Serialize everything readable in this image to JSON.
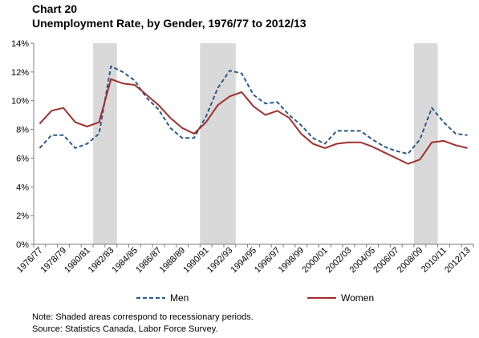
{
  "header": {
    "label": "Chart 20",
    "title": "Unemployment Rate, by Gender, 1976/77 to 2012/13"
  },
  "notes": {
    "note": "Note: Shaded areas correspond to recessionary periods.",
    "source": "Source: Statistics Canada, Labor Force Survey."
  },
  "colors": {
    "men": "#2e5a88",
    "women": "#a0302e",
    "recession": "#d9d9d9",
    "axis": "#7f7f7f"
  },
  "chart_data": {
    "type": "line",
    "title": "Unemployment Rate, by Gender, 1976/77 to 2012/13",
    "xlabel": "",
    "ylabel": "",
    "ylim": [
      0,
      14
    ],
    "yticks": [
      "0%",
      "2%",
      "4%",
      "6%",
      "8%",
      "10%",
      "12%",
      "14%"
    ],
    "grid": false,
    "legend_position": "bottom",
    "categories": [
      "1976/77",
      "1977/78",
      "1978/79",
      "1979/80",
      "1980/81",
      "1981/82",
      "1982/83",
      "1983/84",
      "1984/85",
      "1985/86",
      "1986/87",
      "1987/88",
      "1988/89",
      "1989/90",
      "1990/91",
      "1991/92",
      "1992/93",
      "1993/94",
      "1994/95",
      "1995/96",
      "1996/97",
      "1997/98",
      "1998/99",
      "1999/00",
      "2000/01",
      "2001/02",
      "2002/03",
      "2003/04",
      "2004/05",
      "2005/06",
      "2006/07",
      "2007/08",
      "2008/09",
      "2009/10",
      "2010/11",
      "2011/12",
      "2012/13"
    ],
    "xtick_labels": [
      "1976/77",
      "1978/79",
      "1980/81",
      "1982/83",
      "1984/85",
      "1986/87",
      "1988/89",
      "1990/91",
      "1992/93",
      "1994/95",
      "1996/97",
      "1998/99",
      "2000/01",
      "2002/03",
      "2004/05",
      "2006/07",
      "2008/09",
      "2010/11",
      "2012/13"
    ],
    "recessions": [
      [
        "1981/82",
        "1982/83"
      ],
      [
        "1990/91",
        "1992/93"
      ],
      [
        "2008/09",
        "2009/10"
      ]
    ],
    "series": [
      {
        "name": "Men",
        "style": "dashed",
        "values": [
          6.7,
          7.6,
          7.6,
          6.7,
          7.0,
          7.7,
          12.4,
          12.0,
          11.4,
          10.2,
          9.4,
          8.1,
          7.4,
          7.4,
          8.9,
          10.9,
          12.1,
          11.9,
          10.4,
          9.8,
          9.9,
          9.0,
          8.3,
          7.4,
          7.0,
          7.9,
          7.9,
          7.9,
          7.3,
          6.8,
          6.5,
          6.3,
          7.3,
          9.5,
          8.5,
          7.7,
          7.6
        ]
      },
      {
        "name": "Women",
        "style": "solid",
        "values": [
          8.4,
          9.3,
          9.5,
          8.5,
          8.2,
          8.5,
          11.5,
          11.2,
          11.1,
          10.4,
          9.7,
          8.8,
          8.1,
          7.7,
          8.5,
          9.7,
          10.3,
          10.6,
          9.6,
          9.0,
          9.3,
          8.8,
          7.7,
          7.0,
          6.7,
          7.0,
          7.1,
          7.1,
          6.8,
          6.4,
          6.0,
          5.6,
          5.9,
          7.1,
          7.2,
          6.9,
          6.7
        ]
      }
    ]
  }
}
